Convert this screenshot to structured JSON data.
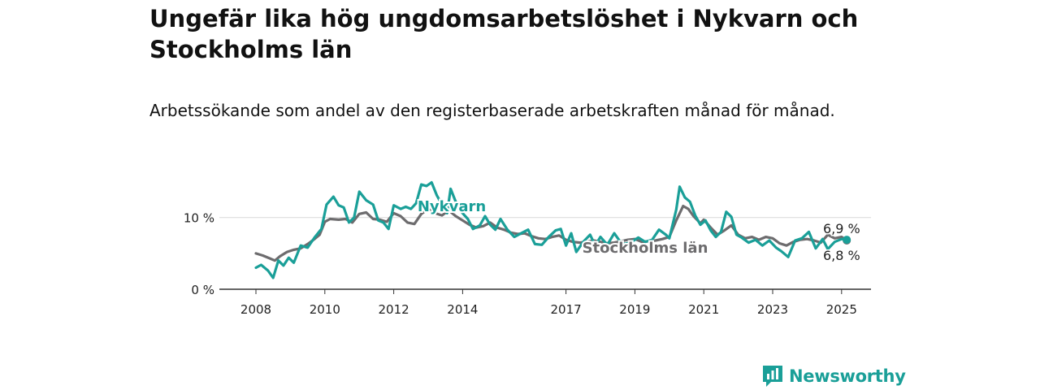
{
  "title": "Ungefär lika hög ungdomsarbetslöshet i Nykvarn och Stockholms län",
  "subtitle": "Arbetssökande som andel av den registerbaserade arbetskraften månad för månad.",
  "brand": {
    "name": "Newsworthy",
    "color": "#1a9f98",
    "icon": "bar-chart-speech-bubble-icon"
  },
  "chart_data": {
    "type": "line",
    "x_unit": "year",
    "xlim": [
      2007.5,
      2025.9
    ],
    "ylim": [
      0,
      14.5
    ],
    "y_ticks": [
      {
        "value": 0,
        "label": "0 %"
      },
      {
        "value": 10,
        "label": "10 %"
      }
    ],
    "x_ticks": [
      {
        "value": 2008,
        "label": "2008"
      },
      {
        "value": 2010,
        "label": "2010"
      },
      {
        "value": 2012,
        "label": "2012"
      },
      {
        "value": 2014,
        "label": "2014"
      },
      {
        "value": 2017,
        "label": "2017"
      },
      {
        "value": 2019,
        "label": "2019"
      },
      {
        "value": 2021,
        "label": "2021"
      },
      {
        "value": 2023,
        "label": "2023"
      },
      {
        "value": 2025,
        "label": "2025"
      }
    ],
    "grid": true,
    "series": [
      {
        "name": "Stockholms län",
        "color": "#6d6c6e",
        "end_label": "6,8 %",
        "points": [
          [
            2008.0,
            5.0
          ],
          [
            2008.2,
            4.7
          ],
          [
            2008.4,
            4.3
          ],
          [
            2008.55,
            4.0
          ],
          [
            2008.7,
            4.6
          ],
          [
            2008.9,
            5.2
          ],
          [
            2009.1,
            5.5
          ],
          [
            2009.3,
            5.7
          ],
          [
            2009.5,
            6.3
          ],
          [
            2009.7,
            7.0
          ],
          [
            2009.85,
            7.6
          ],
          [
            2010.0,
            9.4
          ],
          [
            2010.15,
            9.8
          ],
          [
            2010.4,
            9.7
          ],
          [
            2010.6,
            9.8
          ],
          [
            2010.8,
            9.3
          ],
          [
            2011.0,
            10.5
          ],
          [
            2011.2,
            10.7
          ],
          [
            2011.4,
            9.8
          ],
          [
            2011.6,
            9.7
          ],
          [
            2011.8,
            9.4
          ],
          [
            2012.0,
            10.6
          ],
          [
            2012.2,
            10.2
          ],
          [
            2012.4,
            9.3
          ],
          [
            2012.6,
            9.1
          ],
          [
            2012.8,
            10.5
          ],
          [
            2013.0,
            11.2
          ],
          [
            2013.2,
            10.6
          ],
          [
            2013.4,
            10.3
          ],
          [
            2013.6,
            11.0
          ],
          [
            2013.8,
            10.2
          ],
          [
            2014.0,
            9.6
          ],
          [
            2014.2,
            9.0
          ],
          [
            2014.4,
            8.6
          ],
          [
            2014.6,
            8.8
          ],
          [
            2014.8,
            9.3
          ],
          [
            2015.0,
            8.6
          ],
          [
            2015.2,
            8.3
          ],
          [
            2015.4,
            7.9
          ],
          [
            2015.6,
            7.7
          ],
          [
            2015.8,
            7.8
          ],
          [
            2016.0,
            7.4
          ],
          [
            2016.2,
            7.1
          ],
          [
            2016.4,
            7.0
          ],
          [
            2016.6,
            7.3
          ],
          [
            2016.8,
            7.5
          ],
          [
            2017.0,
            6.9
          ],
          [
            2017.2,
            6.6
          ],
          [
            2017.4,
            6.5
          ],
          [
            2017.6,
            6.6
          ],
          [
            2017.8,
            6.8
          ],
          [
            2018.0,
            6.6
          ],
          [
            2018.2,
            6.4
          ],
          [
            2018.4,
            6.5
          ],
          [
            2018.6,
            6.7
          ],
          [
            2018.8,
            6.9
          ],
          [
            2019.0,
            7.0
          ],
          [
            2019.2,
            6.6
          ],
          [
            2019.4,
            6.7
          ],
          [
            2019.6,
            6.8
          ],
          [
            2019.8,
            7.0
          ],
          [
            2020.0,
            7.3
          ],
          [
            2020.2,
            9.6
          ],
          [
            2020.4,
            11.6
          ],
          [
            2020.55,
            11.2
          ],
          [
            2020.7,
            10.2
          ],
          [
            2020.9,
            9.2
          ],
          [
            2021.0,
            9.7
          ],
          [
            2021.2,
            8.6
          ],
          [
            2021.4,
            7.6
          ],
          [
            2021.6,
            8.2
          ],
          [
            2021.8,
            8.9
          ],
          [
            2022.0,
            7.6
          ],
          [
            2022.2,
            7.1
          ],
          [
            2022.4,
            7.3
          ],
          [
            2022.6,
            6.9
          ],
          [
            2022.8,
            7.3
          ],
          [
            2023.0,
            7.1
          ],
          [
            2023.2,
            6.4
          ],
          [
            2023.4,
            6.1
          ],
          [
            2023.6,
            6.6
          ],
          [
            2023.8,
            6.9
          ],
          [
            2024.0,
            7.0
          ],
          [
            2024.2,
            6.8
          ],
          [
            2024.4,
            6.5
          ],
          [
            2024.6,
            7.6
          ],
          [
            2024.8,
            7.1
          ],
          [
            2025.0,
            7.3
          ],
          [
            2025.15,
            6.8
          ]
        ]
      },
      {
        "name": "Nykvarn",
        "color": "#1a9f98",
        "end_label": "6,9 %",
        "points": [
          [
            2008.0,
            3.0
          ],
          [
            2008.15,
            3.4
          ],
          [
            2008.35,
            2.6
          ],
          [
            2008.5,
            1.6
          ],
          [
            2008.65,
            4.0
          ],
          [
            2008.8,
            3.3
          ],
          [
            2008.95,
            4.4
          ],
          [
            2009.1,
            3.7
          ],
          [
            2009.3,
            6.1
          ],
          [
            2009.5,
            5.8
          ],
          [
            2009.7,
            7.2
          ],
          [
            2009.9,
            8.4
          ],
          [
            2010.05,
            11.8
          ],
          [
            2010.25,
            12.9
          ],
          [
            2010.4,
            11.7
          ],
          [
            2010.55,
            11.4
          ],
          [
            2010.7,
            9.3
          ],
          [
            2010.85,
            10.0
          ],
          [
            2011.0,
            13.6
          ],
          [
            2011.2,
            12.4
          ],
          [
            2011.4,
            11.8
          ],
          [
            2011.55,
            9.6
          ],
          [
            2011.7,
            9.3
          ],
          [
            2011.85,
            8.4
          ],
          [
            2012.0,
            11.7
          ],
          [
            2012.2,
            11.2
          ],
          [
            2012.35,
            11.5
          ],
          [
            2012.5,
            11.2
          ],
          [
            2012.65,
            12.0
          ],
          [
            2012.8,
            14.6
          ],
          [
            2012.95,
            14.4
          ],
          [
            2013.1,
            14.9
          ],
          [
            2013.25,
            13.1
          ],
          [
            2013.4,
            11.8
          ],
          [
            2013.55,
            10.6
          ],
          [
            2013.65,
            14.0
          ],
          [
            2013.85,
            11.6
          ],
          [
            2014.0,
            10.6
          ],
          [
            2014.15,
            9.8
          ],
          [
            2014.3,
            8.4
          ],
          [
            2014.5,
            8.9
          ],
          [
            2014.65,
            10.2
          ],
          [
            2014.8,
            9.0
          ],
          [
            2014.95,
            8.3
          ],
          [
            2015.1,
            9.8
          ],
          [
            2015.3,
            8.3
          ],
          [
            2015.5,
            7.3
          ],
          [
            2015.7,
            7.8
          ],
          [
            2015.9,
            8.3
          ],
          [
            2016.1,
            6.3
          ],
          [
            2016.3,
            6.2
          ],
          [
            2016.5,
            7.3
          ],
          [
            2016.7,
            8.2
          ],
          [
            2016.85,
            8.4
          ],
          [
            2017.0,
            6.1
          ],
          [
            2017.15,
            7.8
          ],
          [
            2017.3,
            5.2
          ],
          [
            2017.5,
            6.6
          ],
          [
            2017.7,
            7.6
          ],
          [
            2017.85,
            6.1
          ],
          [
            2018.0,
            7.3
          ],
          [
            2018.2,
            6.2
          ],
          [
            2018.4,
            7.8
          ],
          [
            2018.55,
            6.8
          ],
          [
            2018.7,
            6.3
          ],
          [
            2018.9,
            6.6
          ],
          [
            2019.1,
            7.2
          ],
          [
            2019.3,
            6.6
          ],
          [
            2019.5,
            6.9
          ],
          [
            2019.7,
            8.3
          ],
          [
            2019.9,
            7.6
          ],
          [
            2020.0,
            7.1
          ],
          [
            2020.2,
            11.1
          ],
          [
            2020.3,
            14.3
          ],
          [
            2020.45,
            12.8
          ],
          [
            2020.6,
            12.2
          ],
          [
            2020.75,
            10.3
          ],
          [
            2020.9,
            9.0
          ],
          [
            2021.05,
            9.6
          ],
          [
            2021.2,
            8.2
          ],
          [
            2021.35,
            7.3
          ],
          [
            2021.5,
            8.0
          ],
          [
            2021.65,
            10.8
          ],
          [
            2021.8,
            10.1
          ],
          [
            2021.95,
            7.6
          ],
          [
            2022.1,
            7.2
          ],
          [
            2022.3,
            6.5
          ],
          [
            2022.5,
            6.9
          ],
          [
            2022.7,
            6.1
          ],
          [
            2022.9,
            6.8
          ],
          [
            2023.1,
            5.8
          ],
          [
            2023.25,
            5.3
          ],
          [
            2023.45,
            4.5
          ],
          [
            2023.65,
            6.8
          ],
          [
            2023.85,
            7.1
          ],
          [
            2024.05,
            8.0
          ],
          [
            2024.25,
            5.7
          ],
          [
            2024.45,
            7.0
          ],
          [
            2024.6,
            5.6
          ],
          [
            2024.8,
            6.6
          ],
          [
            2025.0,
            7.0
          ],
          [
            2025.15,
            6.9
          ]
        ]
      }
    ]
  }
}
